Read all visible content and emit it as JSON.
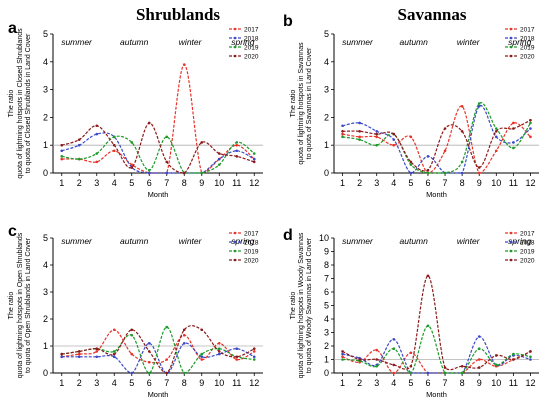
{
  "figure": {
    "titles": [
      "Shrublands",
      "Savannas"
    ]
  },
  "chart_data": [
    {
      "type": "line",
      "panel": "a",
      "title": "Shrublands",
      "xlabel": "Month",
      "ylabel": [
        "The ratio",
        "quota of lightning hotspots in Closed Shrublands",
        "to quota of Closed Shrublands in Land Cover"
      ],
      "x": [
        1,
        2,
        3,
        4,
        5,
        6,
        7,
        8,
        9,
        10,
        11,
        12
      ],
      "ylim": [
        0,
        5
      ],
      "yticks": [
        0,
        1,
        2,
        3,
        4,
        5
      ],
      "reference_line": 1,
      "seasons": [
        "summer",
        "autumn",
        "winter",
        "spring"
      ],
      "legend_position": "top-right",
      "series": [
        {
          "name": "2017",
          "color": "#e8332a",
          "values": [
            0.5,
            0.5,
            0.4,
            0.8,
            0.3,
            0,
            0,
            3.9,
            0,
            0.5,
            1.0,
            0.5
          ]
        },
        {
          "name": "2018",
          "color": "#3b49c8",
          "values": [
            0.8,
            1.0,
            1.4,
            1.3,
            0.2,
            0,
            0,
            0,
            0,
            0.5,
            0.8,
            0.5
          ]
        },
        {
          "name": "2019",
          "color": "#1d9b2a",
          "values": [
            0.6,
            0.5,
            0.7,
            1.3,
            1.1,
            0.1,
            1.3,
            0,
            0,
            0.3,
            1.1,
            0.7
          ]
        },
        {
          "name": "2020",
          "color": "#8b1a1a",
          "values": [
            1.0,
            1.2,
            1.7,
            1.0,
            0.2,
            1.8,
            0.4,
            0,
            1.1,
            0.7,
            0.6,
            0.4
          ]
        }
      ]
    },
    {
      "type": "line",
      "panel": "b",
      "title": "Savannas",
      "xlabel": "Month",
      "ylabel": [
        "The ratio",
        "quota of lightning hotspots in Savannas",
        "to quota of Savannas in Land Cover"
      ],
      "x": [
        1,
        2,
        3,
        4,
        5,
        6,
        7,
        8,
        9,
        10,
        11,
        12
      ],
      "ylim": [
        0,
        5
      ],
      "yticks": [
        0,
        1,
        2,
        3,
        4,
        5
      ],
      "reference_line": 1,
      "seasons": [
        "summer",
        "autumn",
        "winter",
        "spring"
      ],
      "legend_position": "top-right",
      "series": [
        {
          "name": "2017",
          "color": "#e8332a",
          "values": [
            1.4,
            1.3,
            1.3,
            1.0,
            1.3,
            0,
            0.8,
            2.4,
            0,
            0.8,
            1.8,
            1.3
          ]
        },
        {
          "name": "2018",
          "color": "#3b49c8",
          "values": [
            1.7,
            1.8,
            1.5,
            1.2,
            0,
            0.6,
            0,
            0,
            2.4,
            1.3,
            1.1,
            1.6
          ]
        },
        {
          "name": "2019",
          "color": "#1d9b2a",
          "values": [
            1.3,
            1.2,
            1.0,
            1.4,
            0.3,
            0,
            0,
            0.4,
            2.5,
            1.6,
            0.9,
            1.8
          ]
        },
        {
          "name": "2020",
          "color": "#8b1a1a",
          "values": [
            1.5,
            1.5,
            1.4,
            1.4,
            0.4,
            0.1,
            1.6,
            1.5,
            0.2,
            1.5,
            1.6,
            1.9
          ]
        }
      ]
    },
    {
      "type": "line",
      "panel": "c",
      "title": "",
      "xlabel": "Month",
      "ylabel": [
        "The ratio",
        "quota of lightning hotspots in Open Shrublands",
        "to quota of Open Shrublands in Land Cover"
      ],
      "x": [
        1,
        2,
        3,
        4,
        5,
        6,
        7,
        8,
        9,
        10,
        11,
        12
      ],
      "ylim": [
        0,
        5
      ],
      "yticks": [
        0,
        1,
        2,
        3,
        4,
        5
      ],
      "reference_line": 1,
      "seasons": [
        "summer",
        "autumn",
        "winter",
        "spring"
      ],
      "legend_position": "top-right",
      "series": [
        {
          "name": "2017",
          "color": "#e8332a",
          "values": [
            0.6,
            0.7,
            0.8,
            1.6,
            0.7,
            0.4,
            0.5,
            1.4,
            0.5,
            1.1,
            0.5,
            0.8
          ]
        },
        {
          "name": "2018",
          "color": "#3b49c8",
          "values": [
            0.6,
            0.6,
            0.6,
            0.6,
            0,
            1.1,
            0,
            1.1,
            0.6,
            0.7,
            0.9,
            0.6
          ]
        },
        {
          "name": "2019",
          "color": "#1d9b2a",
          "values": [
            0.7,
            0.8,
            0.9,
            0.8,
            1.4,
            0,
            1.7,
            0,
            0.7,
            0.9,
            0.6,
            0.5
          ]
        },
        {
          "name": "2020",
          "color": "#8b1a1a",
          "values": [
            0.7,
            0.8,
            0.9,
            0.7,
            1.6,
            0.8,
            0,
            1.6,
            1.6,
            0.8,
            0.6,
            0.9
          ]
        }
      ]
    },
    {
      "type": "line",
      "panel": "d",
      "title": "",
      "xlabel": "Month",
      "ylabel": [
        "The ratio",
        "quota of lightning hotspots in Woody Savannas",
        "to quota of Woody Savannas in Land Cover"
      ],
      "x": [
        1,
        2,
        3,
        4,
        5,
        6,
        7,
        8,
        9,
        10,
        11,
        12
      ],
      "ylim": [
        0,
        10
      ],
      "yticks": [
        0,
        1,
        2,
        3,
        4,
        5,
        6,
        7,
        8,
        9,
        10
      ],
      "reference_line": 1,
      "seasons": [
        "summer",
        "autumn",
        "winter",
        "spring"
      ],
      "legend_position": "top-right",
      "series": [
        {
          "name": "2017",
          "color": "#e8332a",
          "values": [
            1.2,
            0.8,
            1.7,
            0,
            1.5,
            0,
            0,
            0,
            1.0,
            0.5,
            1.0,
            1.6
          ]
        },
        {
          "name": "2018",
          "color": "#3b49c8",
          "values": [
            1.4,
            1.1,
            0.6,
            2.5,
            0,
            0,
            0,
            0,
            2.7,
            0.6,
            1.3,
            1.0
          ]
        },
        {
          "name": "2019",
          "color": "#1d9b2a",
          "values": [
            1.0,
            0.9,
            0.5,
            1.8,
            0,
            3.5,
            0,
            0,
            1.8,
            0.6,
            1.4,
            1.2
          ]
        },
        {
          "name": "2020",
          "color": "#8b1a1a",
          "values": [
            1.6,
            1.0,
            1.0,
            0.6,
            0.5,
            7.2,
            0.4,
            0.5,
            0.4,
            1.3,
            1.0,
            1.6
          ]
        }
      ]
    }
  ]
}
